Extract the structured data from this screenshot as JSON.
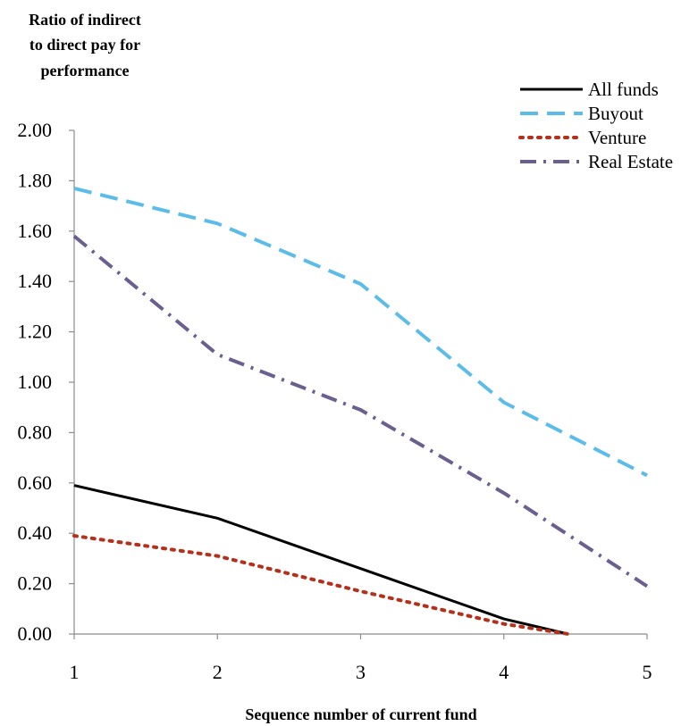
{
  "chart_data": {
    "type": "line",
    "title": "",
    "ylabel_lines": [
      "Ratio of indirect",
      "to direct pay for",
      "performance"
    ],
    "xlabel": "Sequence number of current fund",
    "x": [
      1,
      2,
      3,
      4,
      5
    ],
    "x_tick_labels": [
      "1",
      "2",
      "3",
      "4",
      "5"
    ],
    "xlim": [
      1,
      5
    ],
    "ylim": [
      0,
      2
    ],
    "y_tick_labels": [
      "0.00",
      "0.20",
      "0.40",
      "0.60",
      "0.80",
      "1.00",
      "1.20",
      "1.40",
      "1.60",
      "1.80",
      "2.00"
    ],
    "grid": false,
    "legend_position": "top-right",
    "series": [
      {
        "name": "All funds",
        "color": "#000000",
        "style": "solid",
        "points": [
          [
            1,
            0.59
          ],
          [
            2,
            0.46
          ],
          [
            3,
            0.26
          ],
          [
            4,
            0.06
          ],
          [
            4.45,
            0.0
          ]
        ]
      },
      {
        "name": "Buyout",
        "color": "#5bbcea",
        "style": "dashed",
        "points": [
          [
            1,
            1.77
          ],
          [
            2,
            1.63
          ],
          [
            3,
            1.39
          ],
          [
            4,
            0.92
          ],
          [
            5,
            0.63
          ]
        ]
      },
      {
        "name": "Venture",
        "color": "#b5301a",
        "style": "dotted",
        "points": [
          [
            1,
            0.39
          ],
          [
            2,
            0.31
          ],
          [
            3,
            0.17
          ],
          [
            4,
            0.04
          ],
          [
            4.45,
            0.0
          ]
        ]
      },
      {
        "name": "Real Estate",
        "color": "#6a5f8e",
        "style": "dashdot",
        "points": [
          [
            1,
            1.58
          ],
          [
            2,
            1.11
          ],
          [
            3,
            0.89
          ],
          [
            4,
            0.56
          ],
          [
            5,
            0.19
          ]
        ]
      }
    ]
  }
}
